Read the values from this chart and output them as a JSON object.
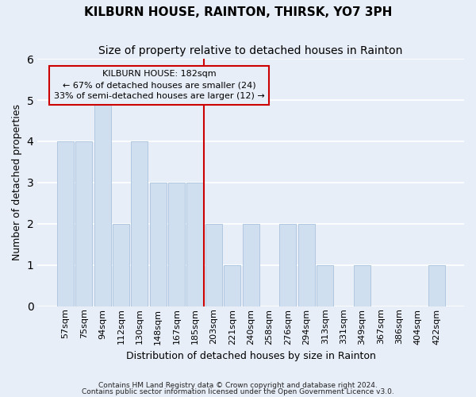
{
  "title": "KILBURN HOUSE, RAINTON, THIRSK, YO7 3PH",
  "subtitle": "Size of property relative to detached houses in Rainton",
  "xlabel": "Distribution of detached houses by size in Rainton",
  "ylabel": "Number of detached properties",
  "footnote1": "Contains HM Land Registry data © Crown copyright and database right 2024.",
  "footnote2": "Contains public sector information licensed under the Open Government Licence v3.0.",
  "categories": [
    "57sqm",
    "75sqm",
    "94sqm",
    "112sqm",
    "130sqm",
    "148sqm",
    "167sqm",
    "185sqm",
    "203sqm",
    "221sqm",
    "240sqm",
    "258sqm",
    "276sqm",
    "294sqm",
    "313sqm",
    "331sqm",
    "349sqm",
    "367sqm",
    "386sqm",
    "404sqm",
    "422sqm"
  ],
  "values": [
    4,
    4,
    5,
    2,
    4,
    3,
    3,
    3,
    2,
    1,
    2,
    0,
    2,
    2,
    1,
    0,
    1,
    0,
    0,
    0,
    1
  ],
  "bar_color": "#cfdff0",
  "bar_edgecolor": "#b0c8e0",
  "marker_index": 7,
  "marker_color": "#cc0000",
  "annotation_title": "KILBURN HOUSE: 182sqm",
  "annotation_line1": "← 67% of detached houses are smaller (24)",
  "annotation_line2": "33% of semi-detached houses are larger (12) →",
  "ylim": [
    0,
    6
  ],
  "yticks": [
    0,
    1,
    2,
    3,
    4,
    5,
    6
  ],
  "background_color": "#e8eef8",
  "grid_color": "#ffffff",
  "title_fontsize": 11,
  "subtitle_fontsize": 10,
  "axis_label_fontsize": 9,
  "tick_fontsize": 8,
  "annotation_fontsize": 8
}
